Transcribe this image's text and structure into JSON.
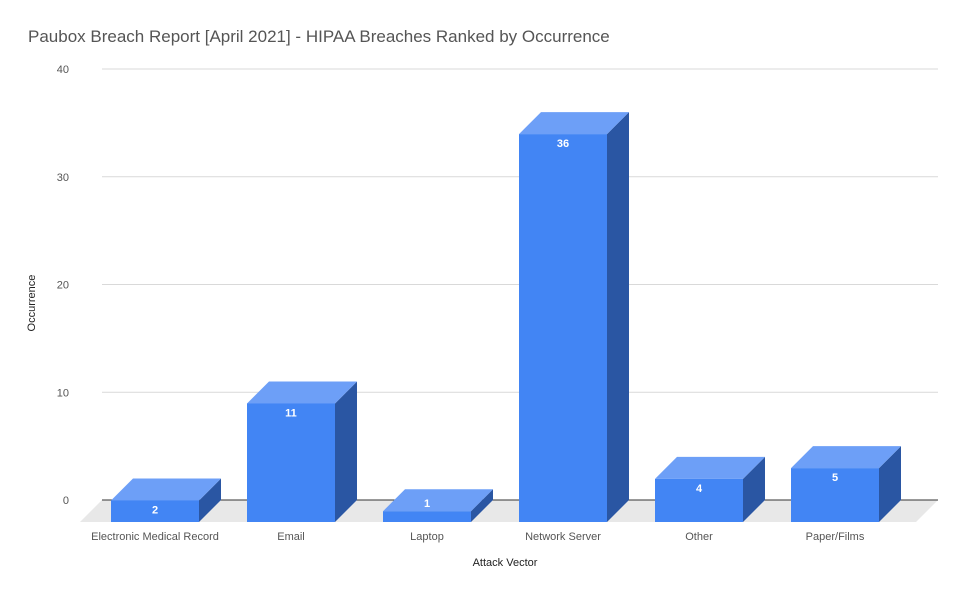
{
  "chart_data": {
    "type": "bar",
    "title": "Paubox Breach Report [April 2021] - HIPAA Breaches Ranked by Occurrence",
    "xlabel": "Attack Vector",
    "ylabel": "Occurrence",
    "categories": [
      "Electronic Medical Record",
      "Email",
      "Laptop",
      "Network Server",
      "Other",
      "Paper/Films"
    ],
    "values": [
      2,
      11,
      1,
      36,
      4,
      5
    ],
    "data_labels": [
      "2",
      "11",
      "1",
      "36",
      "4",
      "5"
    ],
    "yticks": [
      0,
      10,
      20,
      30,
      40
    ],
    "ytick_labels": [
      "0",
      "10",
      "20",
      "30",
      "40"
    ],
    "ylim": [
      0,
      40
    ],
    "grid": true,
    "legend": "none",
    "colors": {
      "bar_front": "#4285f4",
      "bar_top": "#6d9ff7",
      "bar_side": "#2a56a3",
      "floor": "#e8e8e8",
      "grid": "#d9d9d9",
      "baseline": "#333333"
    }
  }
}
